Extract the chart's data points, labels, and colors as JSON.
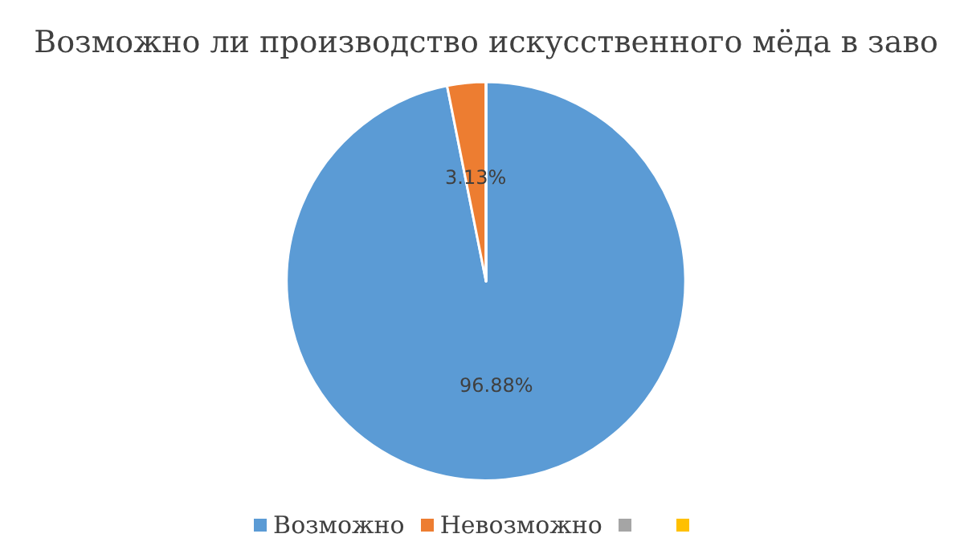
{
  "chart_data": {
    "type": "pie",
    "title": "Возможно ли производство искусственного мёда в заво",
    "categories": [
      "Возможно",
      "Невозможно",
      null,
      null
    ],
    "values": [
      96.88,
      3.13,
      0,
      0
    ],
    "colors": [
      "#5b9bd5",
      "#ed7d31",
      "#a5a5a5",
      "#ffc000"
    ],
    "value_labels": [
      "96.88%",
      "3.13%",
      null,
      null
    ],
    "legend": "bottom"
  }
}
